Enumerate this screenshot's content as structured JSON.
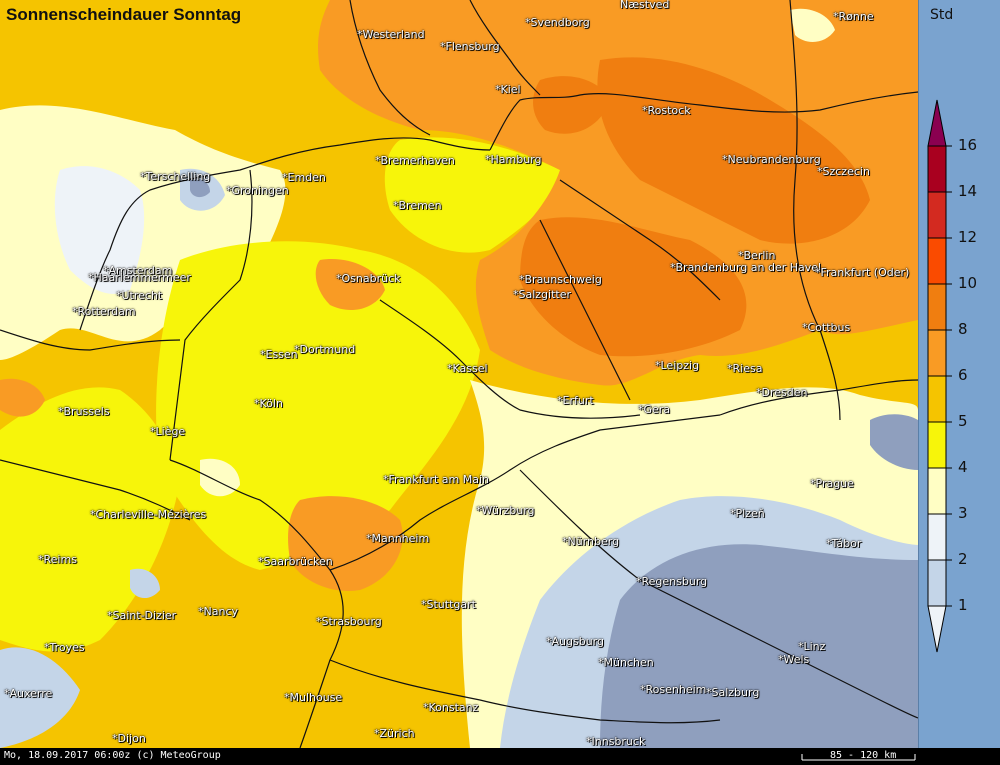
{
  "title": "Sonnenscheindauer Sonntag",
  "legend": {
    "unit": "Std",
    "levels": [
      "16",
      "14",
      "12",
      "10",
      "8",
      "6",
      "5",
      "4",
      "3",
      "2",
      "1"
    ],
    "colors": {
      "very_low": "#8f9fbe",
      "low": "#c4d5e8",
      "low_mid": "#eef3f8",
      "mid_low": "#fffec4",
      "mid": "#f7f50a",
      "mid_high": "#f5c400",
      "high": "#f99b24",
      "very_high": "#f07e10",
      "extreme_1": "#fa4b00",
      "extreme_2": "#d32a20",
      "extreme_3": "#a9001f",
      "max": "#8a0050"
    }
  },
  "cities": {
    "naestved": "Næstved",
    "westerland": "*Westerland",
    "flensburg": "*Flensburg",
    "svendborg": "*Svendborg",
    "ronne": "*Rønne",
    "kiel": "*Kiel",
    "rostock": "*Rostock",
    "terschelling": "*Terschelling",
    "groningen": "*Groningen",
    "emden": "*Emden",
    "bremerhaven": "*Bremerhaven",
    "hamburg": "*Hamburg",
    "neubrandenburg": "*Neubrandenburg",
    "szczecin": "*Szczecin",
    "bremen": "*Bremen",
    "amsterdam": "*Amsterdam",
    "haarlemmermeer": "*Haarlemmermeer",
    "utrecht": "*Utrecht",
    "osnabrueck": "*Osnabrück",
    "braunschweig": "*Braunschweig",
    "salzgitter": "*Salzgitter",
    "berlin": "*Berlin",
    "brandenburg": "*Brandenburg an der Havel",
    "frankfurt_oder": "*Frankfurt (Oder)",
    "rotterdam": "*Rotterdam",
    "cottbus": "*Cottbus",
    "essen": "*Essen",
    "dortmund": "*Dortmund",
    "kassel": "*Kassel",
    "leipzig": "*Leipzig",
    "riesa": "*Riesa",
    "brussels": "*Brussels",
    "koeln": "*Köln",
    "erfurt": "*Erfurt",
    "gera": "*Gera",
    "dresden": "*Dresden",
    "liege": "*Liège",
    "frankfurt_main": "*Frankfurt am Main",
    "prague": "*Prague",
    "charleville": "*Charleville-Mézières",
    "wuerzburg": "*Würzburg",
    "plzen": "*Plzeň",
    "mannheim": "*Mannheim",
    "nuernberg": "*Nürnberg",
    "tabor": "*Tábor",
    "reims": "*Reims",
    "saarbruecken": "*Saarbrücken",
    "regensburg": "*Regensburg",
    "saint_dizier": "*Saint-Dizier",
    "nancy": "*Nancy",
    "stuttgart": "*Stuttgart",
    "strasbourg": "*Strasbourg",
    "augsburg": "*Augsburg",
    "linz": "*Linz",
    "troyes": "*Troyes",
    "muenchen": "*München",
    "wels": "*Wels",
    "auxerre": "*Auxerre",
    "mulhouse": "*Mulhouse",
    "rosenheim": "*Rosenheim",
    "salzburg": "*Salzburg",
    "konstanz": "*Konstanz",
    "zuerich": "*Zürich",
    "innsbruck": "*Innsbruck",
    "dijon": "*Dijon"
  },
  "footer": {
    "timestamp": "Mo, 18.09.2017 06:00z (c) MeteoGroup",
    "scale": "85 - 120 km"
  }
}
